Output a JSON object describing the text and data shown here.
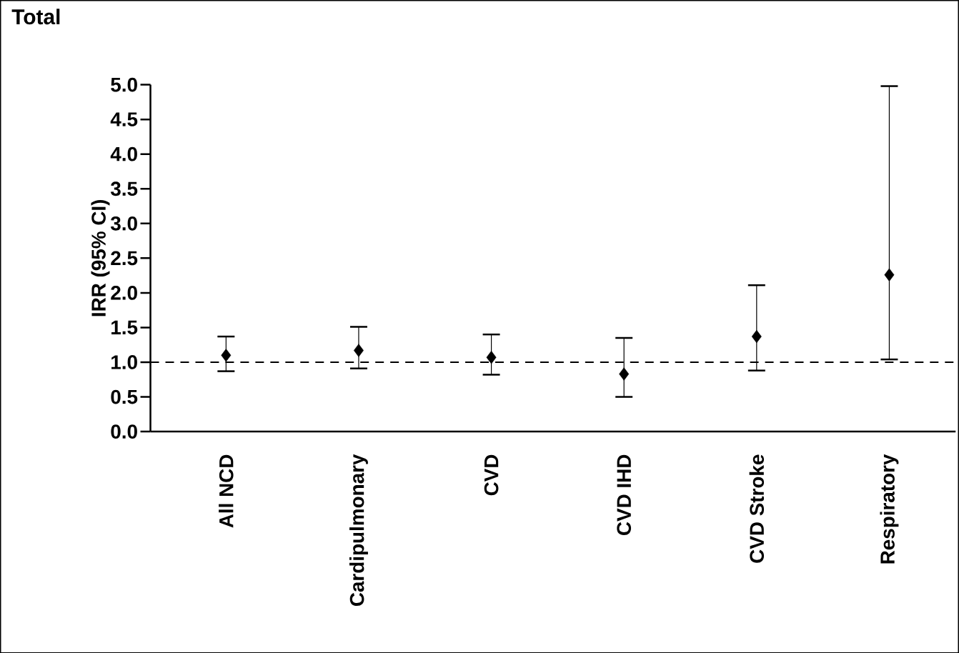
{
  "chart_data": {
    "type": "scatter",
    "title": "Total",
    "ylabel": "IRR (95% CI)",
    "categories": [
      "All NCD",
      "Cardipulmonary",
      "CVD",
      "CVD IHD",
      "CVD Stroke",
      "Respiratory"
    ],
    "values": [
      1.1,
      1.17,
      1.07,
      0.83,
      1.37,
      2.26
    ],
    "errors": [
      [
        0.87,
        1.37
      ],
      [
        0.91,
        1.51
      ],
      [
        0.82,
        1.4
      ],
      [
        0.5,
        1.35
      ],
      [
        0.88,
        2.11
      ],
      [
        1.04,
        4.98
      ]
    ],
    "color": "#000000",
    "marker": "diamond",
    "ylim": [
      0,
      5
    ],
    "yticks": [
      {
        "value": 0,
        "label": "0.0"
      },
      {
        "value": 0.5,
        "label": "0.5"
      },
      {
        "value": 1,
        "label": "1.0"
      },
      {
        "value": 1.5,
        "label": "1.5"
      },
      {
        "value": 2,
        "label": "2.0"
      },
      {
        "value": 2.5,
        "label": "2.5"
      },
      {
        "value": 3,
        "label": "3.0"
      },
      {
        "value": 3.5,
        "label": "3.5"
      },
      {
        "value": 4,
        "label": "4.0"
      },
      {
        "value": 4.5,
        "label": "4.5"
      },
      {
        "value": 5,
        "label": "5.0"
      }
    ],
    "ref_lines": [
      {
        "axis": "y",
        "value": 1,
        "line_style": "dashed",
        "color": "#000000"
      }
    ]
  }
}
